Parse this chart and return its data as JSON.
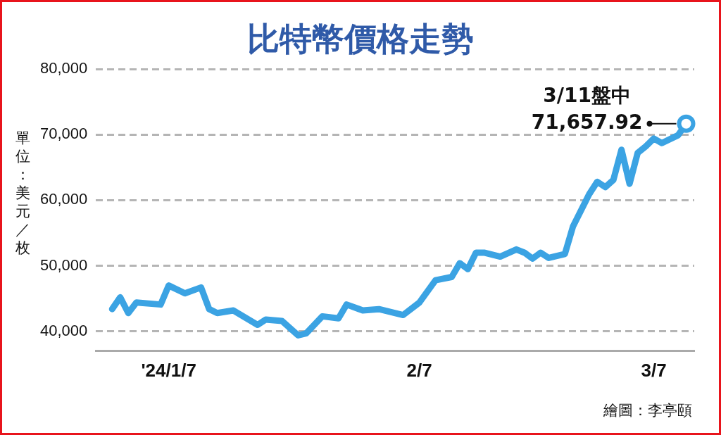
{
  "chart_data": {
    "type": "line",
    "title": "比特幣價格走勢",
    "ylabel": "單位：美元／枚",
    "x": [
      "2023-12-31",
      "2024-01-01",
      "2024-01-02",
      "2024-01-03",
      "2024-01-06",
      "2024-01-07",
      "2024-01-09",
      "2024-01-11",
      "2024-01-12",
      "2024-01-13",
      "2024-01-15",
      "2024-01-18",
      "2024-01-19",
      "2024-01-21",
      "2024-01-23",
      "2024-01-24",
      "2024-01-26",
      "2024-01-28",
      "2024-01-29",
      "2024-01-31",
      "2024-02-02",
      "2024-02-05",
      "2024-02-07",
      "2024-02-09",
      "2024-02-11",
      "2024-02-12",
      "2024-02-13",
      "2024-02-14",
      "2024-02-15",
      "2024-02-17",
      "2024-02-19",
      "2024-02-20",
      "2024-02-21",
      "2024-02-22",
      "2024-02-23",
      "2024-02-25",
      "2024-02-26",
      "2024-02-28",
      "2024-02-29",
      "2024-03-01",
      "2024-03-02",
      "2024-03-03",
      "2024-03-04",
      "2024-03-05",
      "2024-03-06",
      "2024-03-07",
      "2024-03-08",
      "2024-03-10",
      "2024-03-11"
    ],
    "series": [
      {
        "color": "#3ba3e3",
        "values": [
          43400,
          45200,
          42800,
          44400,
          44100,
          47000,
          45800,
          46700,
          43400,
          42800,
          43200,
          41000,
          41800,
          41600,
          39400,
          39700,
          42300,
          42000,
          44100,
          43200,
          43400,
          42500,
          44400,
          47800,
          48300,
          50400,
          49500,
          52000,
          52000,
          51400,
          52500,
          52000,
          51100,
          52000,
          51200,
          51800,
          56000,
          60900,
          62800,
          62000,
          63100,
          67700,
          62500,
          67200,
          68200,
          69400,
          68700,
          69900,
          71657.92
        ]
      }
    ],
    "xlim": [
      "2023-12-29",
      "2024-03-12"
    ],
    "xticks": [
      {
        "value": "2024-01-07",
        "label": "'24/1/7"
      },
      {
        "value": "2024-02-07",
        "label": "2/7"
      },
      {
        "value": "2024-03-07",
        "label": "3/7"
      }
    ],
    "ylim": [
      37000,
      80000
    ],
    "yticks": [
      {
        "value": 40000,
        "label": "40,000"
      },
      {
        "value": 50000,
        "label": "50,000"
      },
      {
        "value": 60000,
        "label": "60,000"
      },
      {
        "value": 70000,
        "label": "70,000"
      },
      {
        "value": 80000,
        "label": "80,000"
      }
    ],
    "grid": "y",
    "legend": false,
    "marker": "none",
    "line_style": "solid",
    "annotations": [
      {
        "text": "3/11盤中\n71,657.92",
        "x": "2024-03-11",
        "y": 71657.92
      },
      "繪圖：李亭頤"
    ]
  }
}
